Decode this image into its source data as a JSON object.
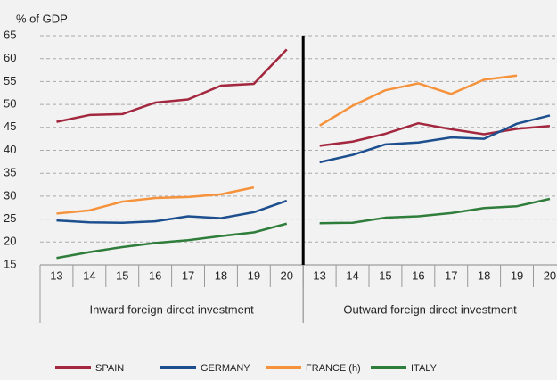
{
  "chart_data": {
    "type": "line",
    "y_label": "% of GDP",
    "ylim": [
      15,
      65
    ],
    "yticks": [
      15,
      20,
      25,
      30,
      35,
      40,
      45,
      50,
      55,
      60,
      65
    ],
    "grid": true,
    "panels": [
      {
        "label": "Inward foreign direct investment",
        "categories": [
          "13",
          "14",
          "15",
          "16",
          "17",
          "18",
          "19",
          "20"
        ]
      },
      {
        "label": "Outward foreign direct investment",
        "categories": [
          "13",
          "14",
          "15",
          "16",
          "17",
          "18",
          "19",
          "20"
        ]
      }
    ],
    "series": [
      {
        "name": "SPAIN",
        "color": "#a3283f",
        "values": [
          [
            46.2,
            47.7,
            47.9,
            50.4,
            51.1,
            54.1,
            54.5,
            62.0
          ],
          [
            41.0,
            41.9,
            43.6,
            45.9,
            44.6,
            43.5,
            44.7,
            45.3
          ]
        ]
      },
      {
        "name": "GERMANY",
        "color": "#1d4f8f",
        "values": [
          [
            24.7,
            24.3,
            24.2,
            24.5,
            25.6,
            25.2,
            26.5,
            29.0
          ],
          [
            37.4,
            39.0,
            41.3,
            41.7,
            42.8,
            42.5,
            45.8,
            47.6
          ]
        ]
      },
      {
        "name": "FRANCE (h)",
        "color": "#f5923b",
        "values": [
          [
            26.2,
            26.9,
            28.8,
            29.6,
            29.8,
            30.4,
            31.9,
            null
          ],
          [
            45.4,
            49.7,
            53.1,
            54.6,
            52.3,
            55.4,
            56.3,
            null
          ]
        ]
      },
      {
        "name": "ITALY",
        "color": "#2f7d3b",
        "values": [
          [
            16.5,
            17.8,
            18.9,
            19.8,
            20.4,
            21.3,
            22.1,
            24.0
          ],
          [
            24.1,
            24.2,
            25.3,
            25.6,
            26.3,
            27.4,
            27.8,
            29.4
          ]
        ]
      }
    ],
    "legend": "bottom"
  }
}
